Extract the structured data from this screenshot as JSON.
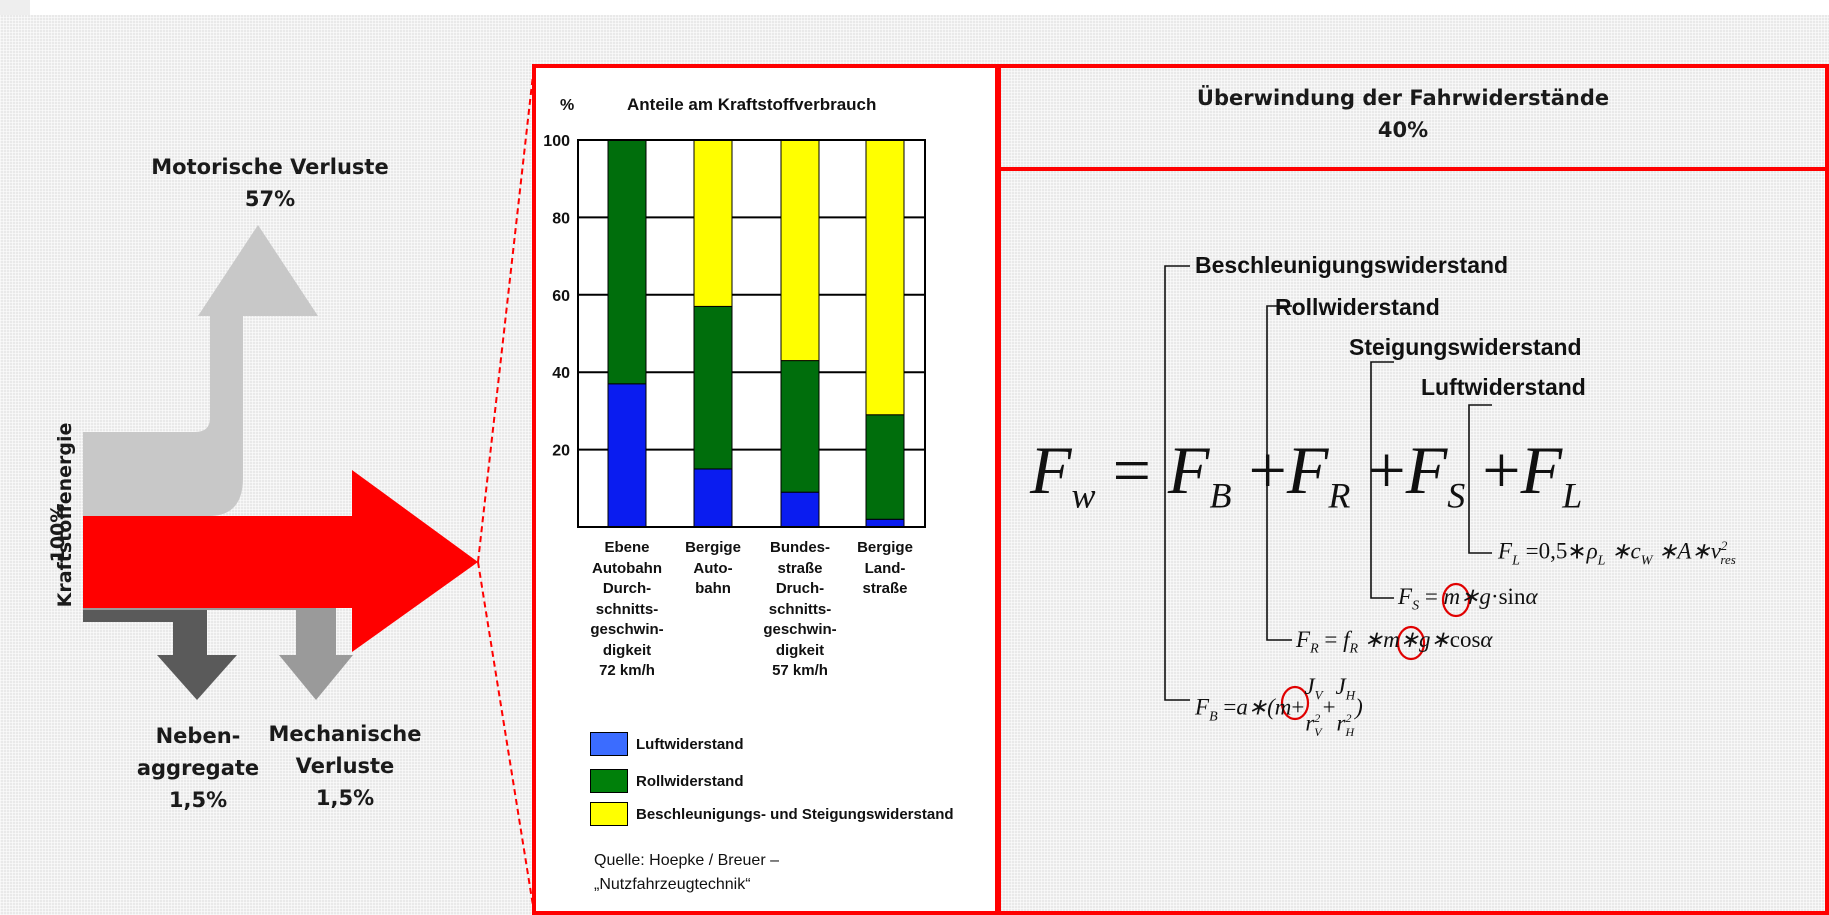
{
  "flow": {
    "input_label": "Kraftstoffenergie",
    "input_value": "100%",
    "motor_label": "Motorische Verluste",
    "motor_value": "57%",
    "aux_label_line1": "Neben-",
    "aux_label_line2": "aggregate",
    "aux_value": "1,5%",
    "mech_label_line1": "Mechanische",
    "mech_label_line2": "Verluste",
    "mech_value": "1,5%",
    "colors": {
      "main": "#ff0000",
      "motor": "#c8c8c8",
      "aux": "#5a5a5a",
      "mech": "#9a9a9a"
    }
  },
  "chart_data": {
    "type": "bar",
    "title": "Anteile am Kraftstoffverbrauch",
    "ylabel": "%",
    "ylim": [
      0,
      100
    ],
    "yticks": [
      "100",
      "80",
      "60",
      "40",
      "20"
    ],
    "stacked": true,
    "categories": [
      "Ebene\nAutobahn\nDurch-\nschnitts-\ngeschwin-\ndigkeit\n72 km/h",
      "Bergige\nAuto-\nbahn",
      "Bundes-\nstraße\nDruch-\nschnitts-\ngeschwin-\ndigkeit\n57 km/h",
      "Bergige\nLand-\nstraße"
    ],
    "series": [
      {
        "name": "Luftwiderstand",
        "color": "#0a1cf0",
        "values": [
          37,
          15,
          9,
          2
        ]
      },
      {
        "name": "Rollwiderstand",
        "color": "#006e0c",
        "values": [
          63,
          42,
          34,
          27
        ]
      },
      {
        "name": "Beschleunigungs- und Steigungswiderstand",
        "color": "#ffff00",
        "values": [
          0,
          43,
          57,
          71
        ]
      }
    ],
    "grid": true,
    "legend": "bottom"
  },
  "legend_swatch_colors": [
    "#3b6cff",
    "#00800a",
    "#ffff00"
  ],
  "source": {
    "line1": "Quelle: Hoepke / Breuer –",
    "line2": "„Nutzfahrzeugtechnik“"
  },
  "resistance": {
    "title": "Überwindung der Fahrwiderstände",
    "value": "40%",
    "labels": {
      "accel": "Beschleunigungswiderstand",
      "roll": "Rollwiderstand",
      "grade": "Steigungswiderstand",
      "air": "Luftwiderstand"
    }
  }
}
